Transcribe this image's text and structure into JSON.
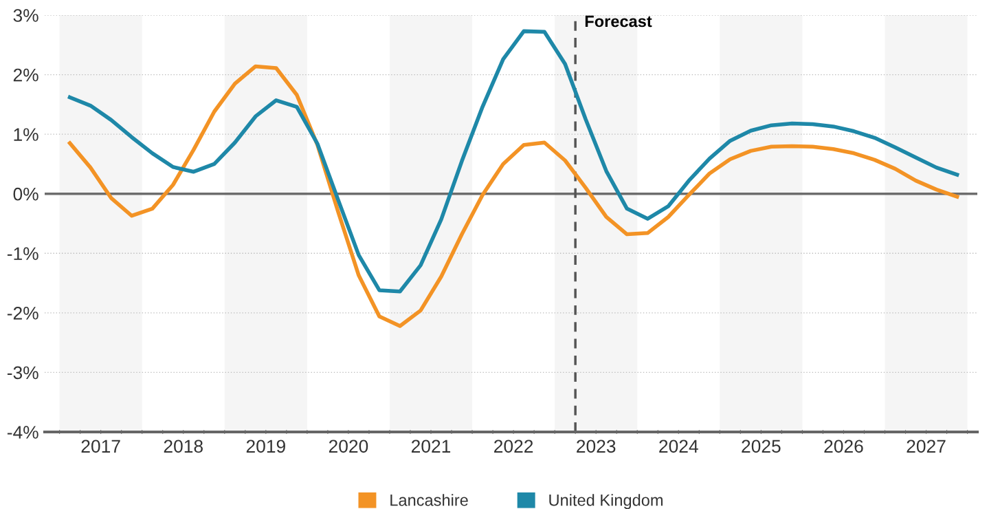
{
  "chart_data": {
    "type": "line",
    "x": [
      2017.125,
      2017.375,
      2017.625,
      2017.875,
      2018.125,
      2018.375,
      2018.625,
      2018.875,
      2019.125,
      2019.375,
      2019.625,
      2019.875,
      2020.125,
      2020.375,
      2020.625,
      2020.875,
      2021.125,
      2021.375,
      2021.625,
      2021.875,
      2022.125,
      2022.375,
      2022.625,
      2022.875,
      2023.125,
      2023.375,
      2023.625,
      2023.875,
      2024.125,
      2024.375,
      2024.625,
      2024.875,
      2025.125,
      2025.375,
      2025.625,
      2025.875,
      2026.125,
      2026.375,
      2026.625,
      2026.875,
      2027.125,
      2027.375,
      2027.625,
      2027.875
    ],
    "series": [
      {
        "name": "Lancashire",
        "color": "#f39325",
        "values": [
          0.85,
          0.44,
          -0.07,
          -0.37,
          -0.25,
          0.15,
          0.74,
          1.38,
          1.85,
          2.14,
          2.11,
          1.66,
          0.82,
          -0.3,
          -1.37,
          -2.06,
          -2.22,
          -1.96,
          -1.39,
          -0.68,
          -0.02,
          0.5,
          0.82,
          0.86,
          0.56,
          0.1,
          -0.39,
          -0.68,
          -0.66,
          -0.39,
          -0.02,
          0.34,
          0.58,
          0.72,
          0.79,
          0.8,
          0.79,
          0.75,
          0.68,
          0.57,
          0.42,
          0.22,
          0.07,
          -0.05
        ]
      },
      {
        "name": "United Kingdom",
        "color": "#1e88a8",
        "values": [
          1.62,
          1.48,
          1.24,
          0.95,
          0.68,
          0.45,
          0.37,
          0.5,
          0.86,
          1.3,
          1.57,
          1.46,
          0.84,
          -0.1,
          -1.03,
          -1.62,
          -1.64,
          -1.2,
          -0.43,
          0.55,
          1.46,
          2.26,
          2.73,
          2.72,
          2.18,
          1.25,
          0.38,
          -0.25,
          -0.42,
          -0.21,
          0.22,
          0.59,
          0.89,
          1.06,
          1.15,
          1.18,
          1.17,
          1.13,
          1.05,
          0.94,
          0.78,
          0.61,
          0.44,
          0.32
        ]
      }
    ],
    "xlim": [
      2016.82,
      2028.12
    ],
    "xticks": [
      {
        "value": 2017,
        "label": null
      },
      {
        "value": 2017.25,
        "label": null
      },
      {
        "value": 2017.5,
        "label": "2017"
      },
      {
        "value": 2017.75,
        "label": null
      },
      {
        "value": 2018,
        "label": null
      },
      {
        "value": 2018.25,
        "label": null
      },
      {
        "value": 2018.5,
        "label": "2018"
      },
      {
        "value": 2018.75,
        "label": null
      },
      {
        "value": 2019,
        "label": null
      },
      {
        "value": 2019.25,
        "label": null
      },
      {
        "value": 2019.5,
        "label": "2019"
      },
      {
        "value": 2019.75,
        "label": null
      },
      {
        "value": 2020,
        "label": null
      },
      {
        "value": 2020.25,
        "label": null
      },
      {
        "value": 2020.5,
        "label": "2020"
      },
      {
        "value": 2020.75,
        "label": null
      },
      {
        "value": 2021,
        "label": null
      },
      {
        "value": 2021.25,
        "label": null
      },
      {
        "value": 2021.5,
        "label": "2021"
      },
      {
        "value": 2021.75,
        "label": null
      },
      {
        "value": 2022,
        "label": null
      },
      {
        "value": 2022.25,
        "label": null
      },
      {
        "value": 2022.5,
        "label": "2022"
      },
      {
        "value": 2022.75,
        "label": null
      },
      {
        "value": 2023,
        "label": null
      },
      {
        "value": 2023.25,
        "label": null
      },
      {
        "value": 2023.5,
        "label": "2023"
      },
      {
        "value": 2023.75,
        "label": null
      },
      {
        "value": 2024,
        "label": null
      },
      {
        "value": 2024.25,
        "label": null
      },
      {
        "value": 2024.5,
        "label": "2024"
      },
      {
        "value": 2024.75,
        "label": null
      },
      {
        "value": 2025,
        "label": null
      },
      {
        "value": 2025.25,
        "label": null
      },
      {
        "value": 2025.5,
        "label": "2025"
      },
      {
        "value": 2025.75,
        "label": null
      },
      {
        "value": 2026,
        "label": null
      },
      {
        "value": 2026.25,
        "label": null
      },
      {
        "value": 2026.5,
        "label": "2026"
      },
      {
        "value": 2026.75,
        "label": null
      },
      {
        "value": 2027,
        "label": null
      },
      {
        "value": 2027.25,
        "label": null
      },
      {
        "value": 2027.5,
        "label": "2027"
      },
      {
        "value": 2027.75,
        "label": null
      },
      {
        "value": 2028,
        "label": null
      }
    ],
    "ylim": [
      -4,
      3
    ],
    "yticks": [
      {
        "value": -4,
        "label": "-4%"
      },
      {
        "value": -3,
        "label": "-3%"
      },
      {
        "value": -2,
        "label": "-2%"
      },
      {
        "value": -1,
        "label": "-1%"
      },
      {
        "value": 0,
        "label": "0%"
      },
      {
        "value": 1,
        "label": "1%"
      },
      {
        "value": 2,
        "label": "2%"
      },
      {
        "value": 3,
        "label": "3%"
      }
    ],
    "grid": "y",
    "legend": "bottom",
    "marker": "none",
    "line_style": "solid",
    "ref_lines": [
      {
        "axis": "y",
        "value": 0,
        "label": null,
        "color": "#6d6d6d",
        "line_style": "solid"
      },
      {
        "axis": "x",
        "value": 2023.25,
        "label": "Forecast",
        "color": "#555555",
        "line_style": "dashed"
      }
    ],
    "bands": [
      {
        "axis": "x",
        "from": 2017,
        "to": 2018,
        "label": null,
        "color": "#f5f5f5"
      },
      {
        "axis": "x",
        "from": 2019,
        "to": 2020,
        "label": null,
        "color": "#f5f5f5"
      },
      {
        "axis": "x",
        "from": 2021,
        "to": 2022,
        "label": null,
        "color": "#f5f5f5"
      },
      {
        "axis": "x",
        "from": 2023,
        "to": 2024,
        "label": null,
        "color": "#f5f5f5"
      },
      {
        "axis": "x",
        "from": 2025,
        "to": 2026,
        "label": null,
        "color": "#f5f5f5"
      },
      {
        "axis": "x",
        "from": 2027,
        "to": 2028,
        "label": null,
        "color": "#f5f5f5"
      }
    ]
  }
}
